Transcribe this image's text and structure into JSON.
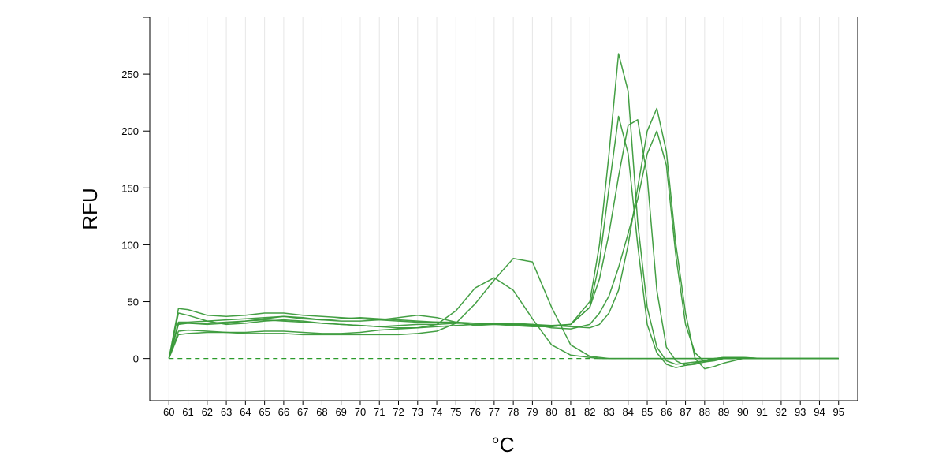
{
  "chart_data": {
    "type": "line",
    "title": "",
    "xlabel": "°C",
    "ylabel": "RFU",
    "xlim": [
      59,
      96
    ],
    "ylim": [
      -37,
      300
    ],
    "x_ticks": [
      60,
      61,
      62,
      63,
      64,
      65,
      66,
      67,
      68,
      69,
      70,
      71,
      72,
      73,
      74,
      75,
      76,
      77,
      78,
      79,
      80,
      81,
      82,
      83,
      84,
      85,
      86,
      87,
      88,
      89,
      90,
      91,
      92,
      93,
      94,
      95
    ],
    "y_ticks": [
      0,
      50,
      100,
      150,
      200,
      250
    ],
    "grid": "vertical",
    "line_color": "#3a9a3a",
    "baseline": {
      "y": 0,
      "style": "dashed",
      "color": "#2a9a2a"
    },
    "x": [
      60,
      60.5,
      61,
      62,
      63,
      64,
      65,
      66,
      67,
      68,
      69,
      70,
      71,
      72,
      73,
      74,
      75,
      76,
      77,
      78,
      79,
      80,
      81,
      82,
      82.5,
      83,
      83.5,
      84,
      84.5,
      85,
      85.5,
      86,
      86.5,
      87,
      87.5,
      88,
      88.5,
      89,
      90,
      91,
      92,
      93,
      94,
      95
    ],
    "series": [
      {
        "values": [
          0,
          44,
          43,
          38,
          37,
          38,
          40,
          40,
          38,
          37,
          36,
          35,
          34,
          33,
          32,
          32,
          32,
          31,
          30,
          29,
          28,
          28,
          30,
          45,
          85,
          150,
          213,
          180,
          100,
          30,
          5,
          -5,
          -8,
          -6,
          -4,
          -2,
          0,
          1,
          1,
          0,
          0,
          0,
          0,
          0
        ]
      },
      {
        "values": [
          0,
          40,
          38,
          33,
          30,
          31,
          33,
          34,
          33,
          31,
          30,
          29,
          28,
          27,
          27,
          28,
          29,
          30,
          30,
          30,
          29,
          28,
          30,
          50,
          100,
          180,
          268,
          235,
          120,
          45,
          10,
          -2,
          -5,
          -4,
          -3,
          -2,
          0,
          1,
          1,
          0,
          0,
          0,
          0,
          0
        ]
      },
      {
        "values": [
          0,
          30,
          31,
          30,
          31,
          33,
          34,
          33,
          32,
          31,
          30,
          29,
          28,
          29,
          30,
          30,
          31,
          31,
          31,
          30,
          30,
          29,
          30,
          45,
          70,
          110,
          160,
          205,
          210,
          160,
          60,
          10,
          -2,
          -6,
          -5,
          -3,
          -1,
          0,
          0,
          0,
          0,
          0,
          0,
          0
        ]
      },
      {
        "values": [
          0,
          32,
          32,
          33,
          34,
          35,
          36,
          37,
          35,
          34,
          35,
          36,
          35,
          34,
          33,
          32,
          31,
          31,
          31,
          30,
          29,
          29,
          28,
          27,
          30,
          40,
          60,
          100,
          150,
          200,
          220,
          182,
          100,
          40,
          0,
          -9,
          -7,
          -4,
          0,
          0,
          0,
          0,
          0,
          0
        ]
      },
      {
        "values": [
          0,
          24,
          25,
          24,
          23,
          23,
          24,
          24,
          23,
          22,
          22,
          23,
          25,
          26,
          27,
          30,
          42,
          62,
          71,
          60,
          35,
          12,
          3,
          1,
          0,
          0,
          0,
          0,
          0,
          0,
          0,
          0,
          0,
          0,
          0,
          0,
          0,
          0,
          0,
          0,
          0,
          0,
          0,
          0
        ]
      },
      {
        "values": [
          0,
          21,
          22,
          23,
          23,
          22,
          22,
          22,
          21,
          21,
          21,
          21,
          21,
          21,
          22,
          24,
          31,
          48,
          69,
          88,
          85,
          45,
          12,
          2,
          1,
          0,
          0,
          0,
          0,
          0,
          0,
          0,
          0,
          0,
          0,
          0,
          0,
          0,
          0,
          0,
          0,
          0,
          0,
          0
        ]
      },
      {
        "values": [
          0,
          31,
          31,
          31,
          32,
          33,
          35,
          37,
          36,
          34,
          33,
          33,
          34,
          36,
          38,
          36,
          32,
          29,
          30,
          31,
          30,
          27,
          26,
          30,
          40,
          55,
          80,
          110,
          140,
          180,
          200,
          170,
          90,
          30,
          5,
          -3,
          -2,
          0,
          0,
          0,
          0,
          0,
          0,
          0
        ]
      }
    ]
  }
}
